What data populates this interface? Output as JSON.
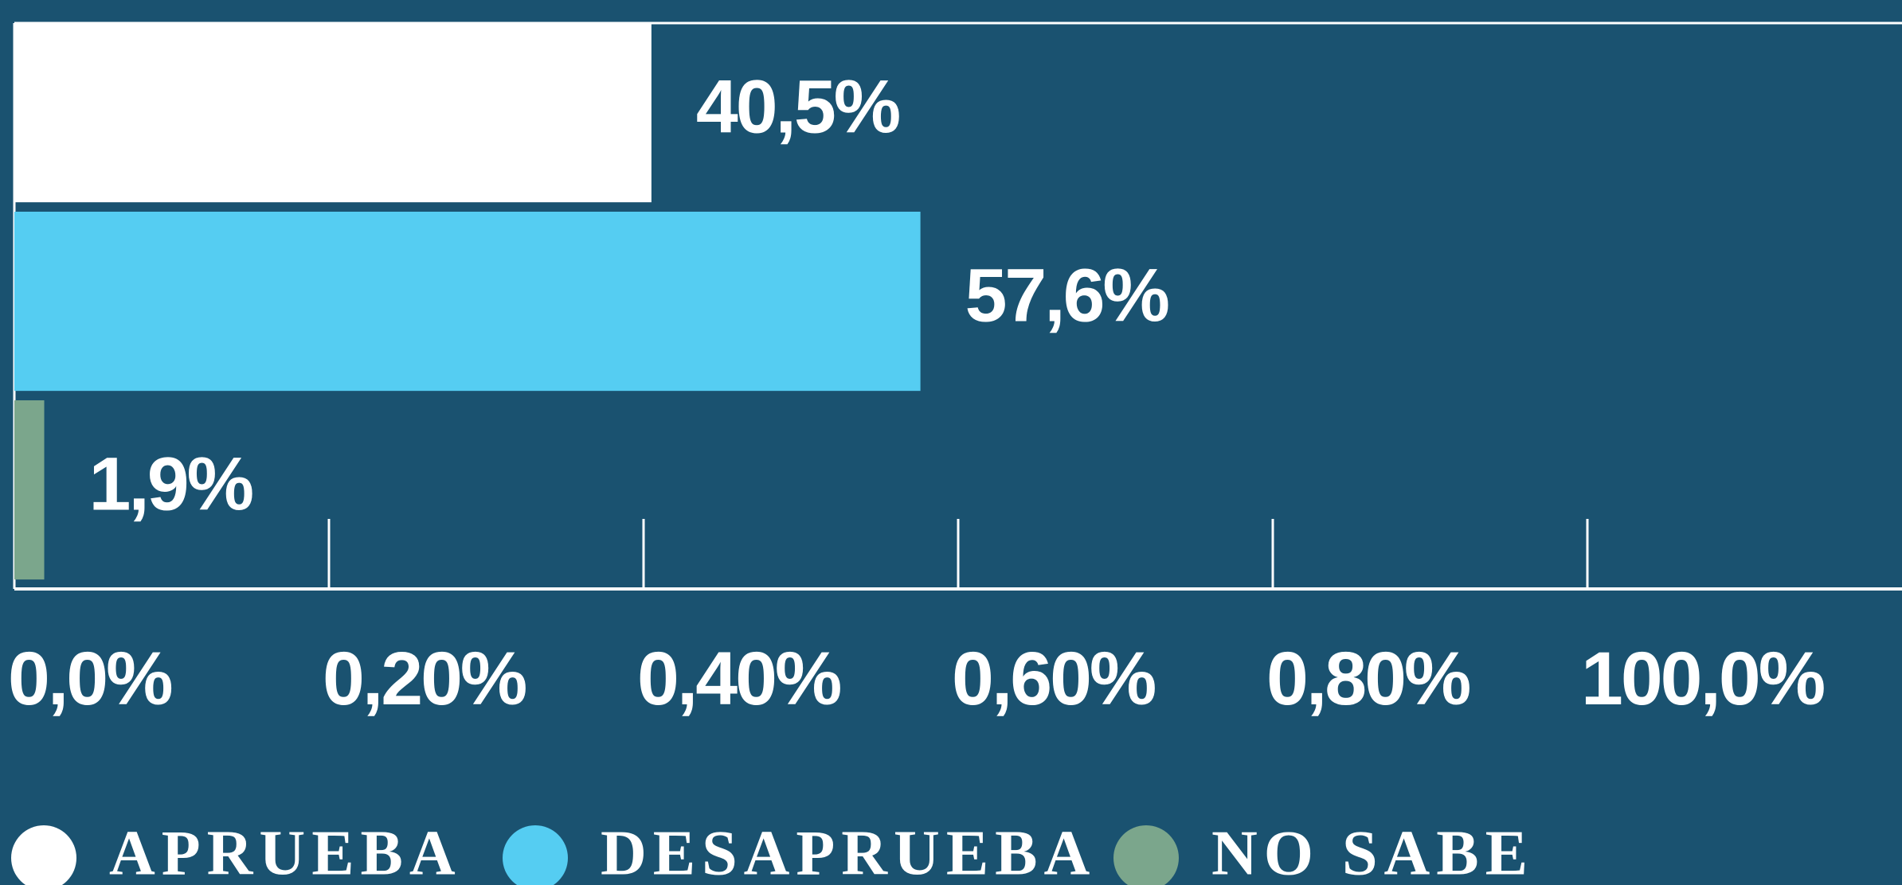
{
  "chart_data": {
    "type": "bar",
    "orientation": "horizontal",
    "categories": [
      "APRUEBA",
      "DESAPRUEBA",
      "NO SABE"
    ],
    "values": [
      40.5,
      57.6,
      1.9
    ],
    "value_labels": [
      "40,5%",
      "57,6%",
      "1,9%"
    ],
    "colors": [
      "#ffffff",
      "#55cdf2",
      "#7ba68c"
    ],
    "xlim": [
      0,
      120
    ],
    "xticks": [
      {
        "value": 0,
        "label": "0,0%"
      },
      {
        "value": 20,
        "label": "0,20%"
      },
      {
        "value": 40,
        "label": "0,40%"
      },
      {
        "value": 60,
        "label": "0,60%"
      },
      {
        "value": 80,
        "label": "0,80%"
      },
      {
        "value": 100,
        "label": "100,0%"
      }
    ],
    "legend": "bottom"
  }
}
